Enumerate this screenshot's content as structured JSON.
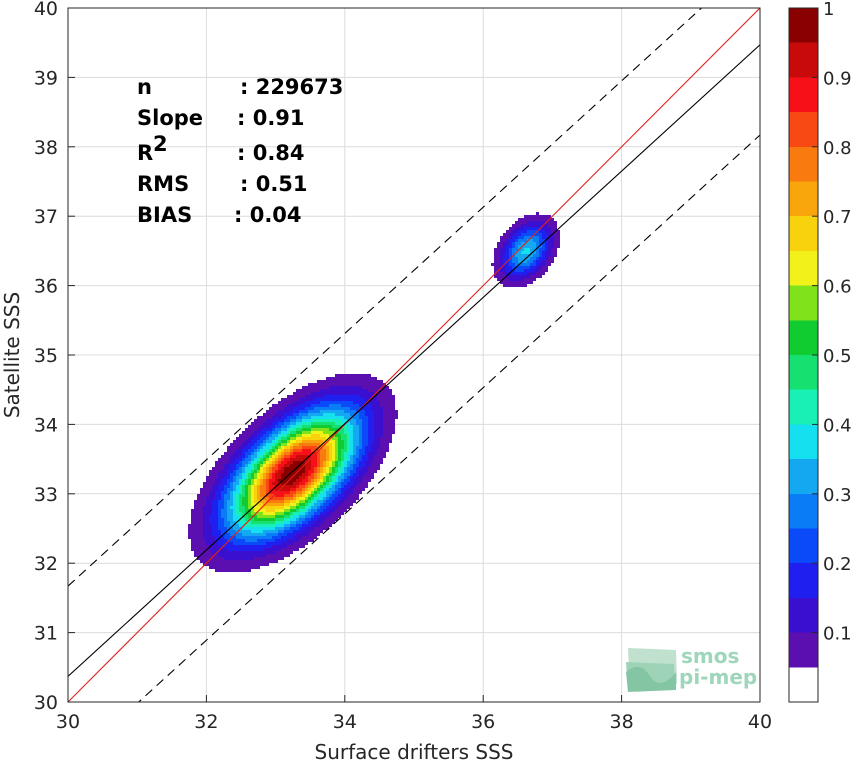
{
  "chart_data": {
    "type": "contour",
    "xlabel": "Surface drifters SSS",
    "ylabel": "Satellite SSS",
    "xlim": [
      30,
      40
    ],
    "ylim": [
      30,
      40
    ],
    "xticks": [
      "30",
      "32",
      "34",
      "36",
      "38",
      "40"
    ],
    "yticks": [
      "30",
      "31",
      "32",
      "33",
      "34",
      "35",
      "36",
      "37",
      "38",
      "39",
      "40"
    ],
    "grid": true,
    "stats": [
      {
        "label": "n",
        "value": ": 229673"
      },
      {
        "label": "Slope",
        "value": ": 0.91"
      },
      {
        "label": "R",
        "sup": "2",
        "value": ": 0.84"
      },
      {
        "label": "RMS",
        "value": ": 0.51"
      },
      {
        "label": "BIAS",
        "value": ": 0.04"
      }
    ],
    "lines": [
      {
        "name": "one-to-one",
        "color": "#e0201b",
        "style": "solid",
        "slope": 1,
        "intercept": 0
      },
      {
        "name": "regression",
        "color": "#000000",
        "style": "solid",
        "slope": 0.91,
        "intercept": 3.07
      },
      {
        "name": "upper-bound",
        "color": "#000000",
        "style": "dashed",
        "slope": 0.91,
        "intercept": 4.37
      },
      {
        "name": "lower-bound",
        "color": "#000000",
        "style": "dashed",
        "slope": 0.91,
        "intercept": 1.77
      }
    ],
    "density_clusters": [
      {
        "name": "main-cluster",
        "cx": 33.25,
        "cy": 33.3,
        "peak": 1.0,
        "u": [
          0.73,
          0.68
        ],
        "su": 1.55,
        "sv": 0.78
      },
      {
        "name": "secondary-cluster",
        "cx": 36.62,
        "cy": 36.5,
        "peak": 0.36,
        "u": [
          0.6,
          0.8
        ],
        "su": 0.62,
        "sv": 0.42
      }
    ],
    "colorbar": {
      "min": 0,
      "max": 1,
      "tick_labels": [
        "0.1",
        "0.2",
        "0.3",
        "0.4",
        "0.5",
        "0.6",
        "0.7",
        "0.8",
        "0.9",
        "1"
      ],
      "tick_values": [
        0.1,
        0.2,
        0.3,
        0.4,
        0.5,
        0.6,
        0.7,
        0.8,
        0.9,
        1.0
      ],
      "levels": [
        0.05,
        0.1,
        0.15,
        0.2,
        0.25,
        0.3,
        0.35,
        0.4,
        0.45,
        0.5,
        0.55,
        0.6,
        0.65,
        0.7,
        0.75,
        0.8,
        0.85,
        0.9,
        0.95
      ],
      "colors": [
        "#ffffff",
        "#5b0fb0",
        "#3b0fcf",
        "#1f1ff0",
        "#0b4af8",
        "#0a7cf6",
        "#14a8f0",
        "#15e0f0",
        "#19f0b5",
        "#15e070",
        "#10cc30",
        "#7fe21a",
        "#f2f21a",
        "#f8d20c",
        "#f8a60c",
        "#f97a0e",
        "#f84814",
        "#f81018",
        "#c80a0a",
        "#8a0000"
      ]
    }
  },
  "logo": {
    "line1": "smos",
    "line2": "pi-mep"
  }
}
